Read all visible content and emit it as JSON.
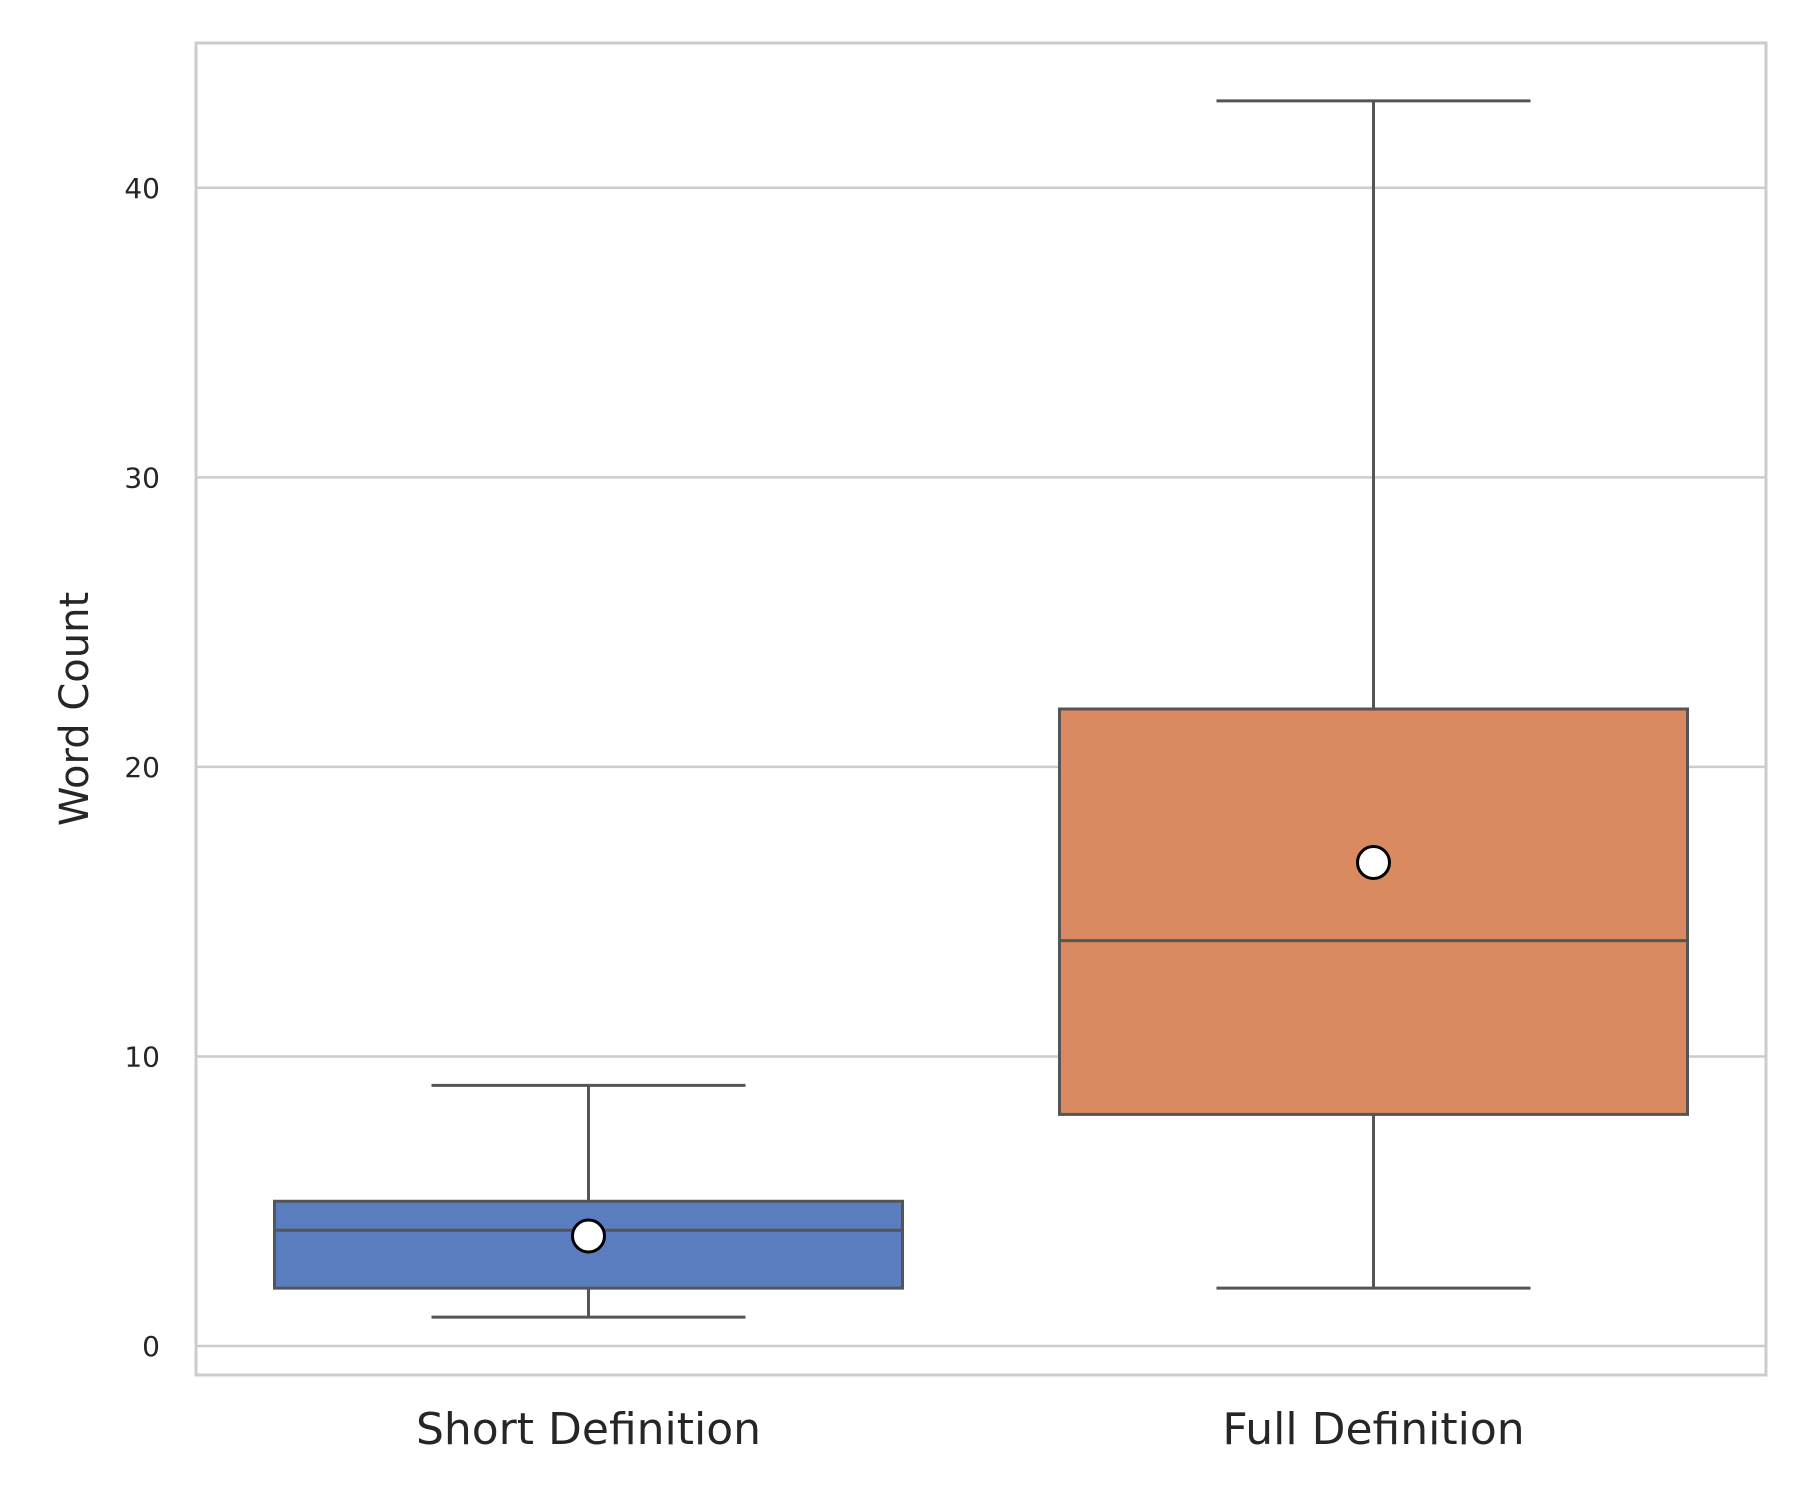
{
  "chart_data": {
    "type": "box",
    "ylabel": "Word Count",
    "xlabel": "",
    "ylim": [
      -1,
      45
    ],
    "yticks": [
      0,
      10,
      20,
      30,
      40
    ],
    "grid": "horizontal",
    "series": [
      {
        "category": "Short Definition",
        "color": "#5a7dbf",
        "whisker_low": 1,
        "q1": 2,
        "median": 4,
        "q3": 5,
        "whisker_high": 9,
        "mean": 3.8
      },
      {
        "category": "Full Definition",
        "color": "#d98a60",
        "whisker_low": 2,
        "q1": 8,
        "median": 14,
        "q3": 22,
        "whisker_high": 43,
        "mean": 16.7
      }
    ]
  }
}
